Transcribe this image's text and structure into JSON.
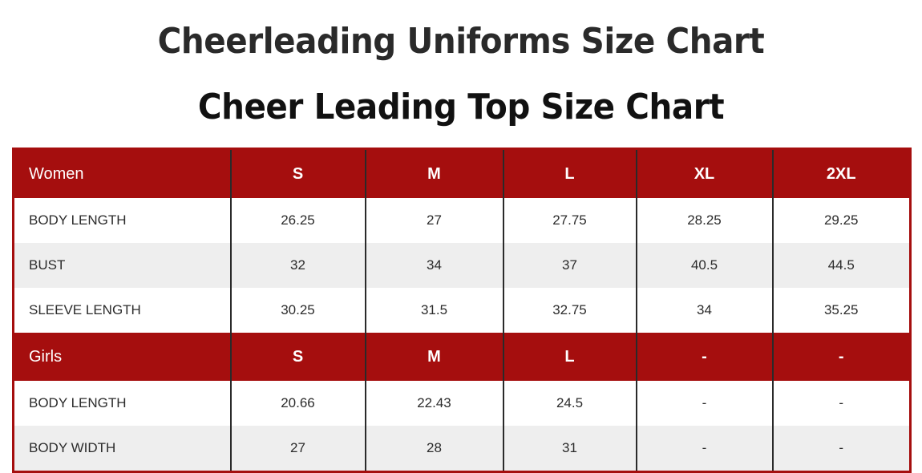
{
  "title": "Cheerleading Uniforms Size Chart",
  "subtitle": "Cheer Leading Top Size Chart",
  "colors": {
    "header_red": "#a50e0e",
    "row_alt": "#eeeeee"
  },
  "women": {
    "header": [
      "Women",
      "S",
      "M",
      "L",
      "XL",
      "2XL"
    ],
    "rows": [
      [
        "BODY LENGTH",
        "26.25",
        "27",
        "27.75",
        "28.25",
        "29.25"
      ],
      [
        "BUST",
        "32",
        "34",
        "37",
        "40.5",
        "44.5"
      ],
      [
        "SLEEVE LENGTH",
        "30.25",
        "31.5",
        "32.75",
        "34",
        "35.25"
      ]
    ]
  },
  "girls": {
    "header": [
      "Girls",
      "S",
      "M",
      "L",
      "-",
      "-"
    ],
    "rows": [
      [
        "BODY LENGTH",
        "20.66",
        "22.43",
        "24.5",
        "-",
        "-"
      ],
      [
        "BODY WIDTH",
        "27",
        "28",
        "31",
        "-",
        "-"
      ]
    ]
  }
}
